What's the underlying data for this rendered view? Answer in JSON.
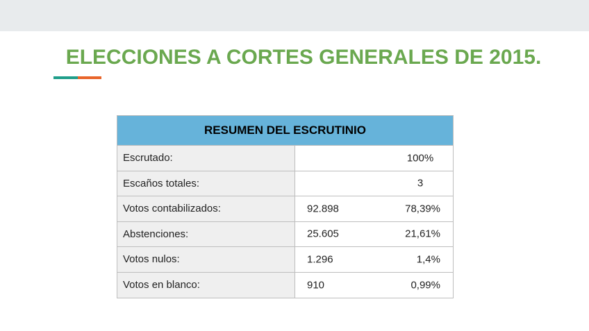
{
  "header": {
    "title": "ELECCIONES A CORTES GENERALES DE 2015."
  },
  "table": {
    "title": "RESUMEN DEL ESCRUTINIO",
    "rows": [
      {
        "label": "Escrutado:",
        "values": [
          "100%"
        ]
      },
      {
        "label": "Escaños totales:",
        "values": [
          "3"
        ]
      },
      {
        "label": "Votos contabilizados:",
        "values": [
          "92.898",
          "78,39%"
        ]
      },
      {
        "label": "Abstenciones:",
        "values": [
          "25.605",
          "21,61%"
        ]
      },
      {
        "label": "Votos nulos:",
        "values": [
          "1.296",
          "1,4%"
        ]
      },
      {
        "label": "Votos en blanco:",
        "values": [
          "910",
          "0,99%"
        ]
      }
    ]
  }
}
